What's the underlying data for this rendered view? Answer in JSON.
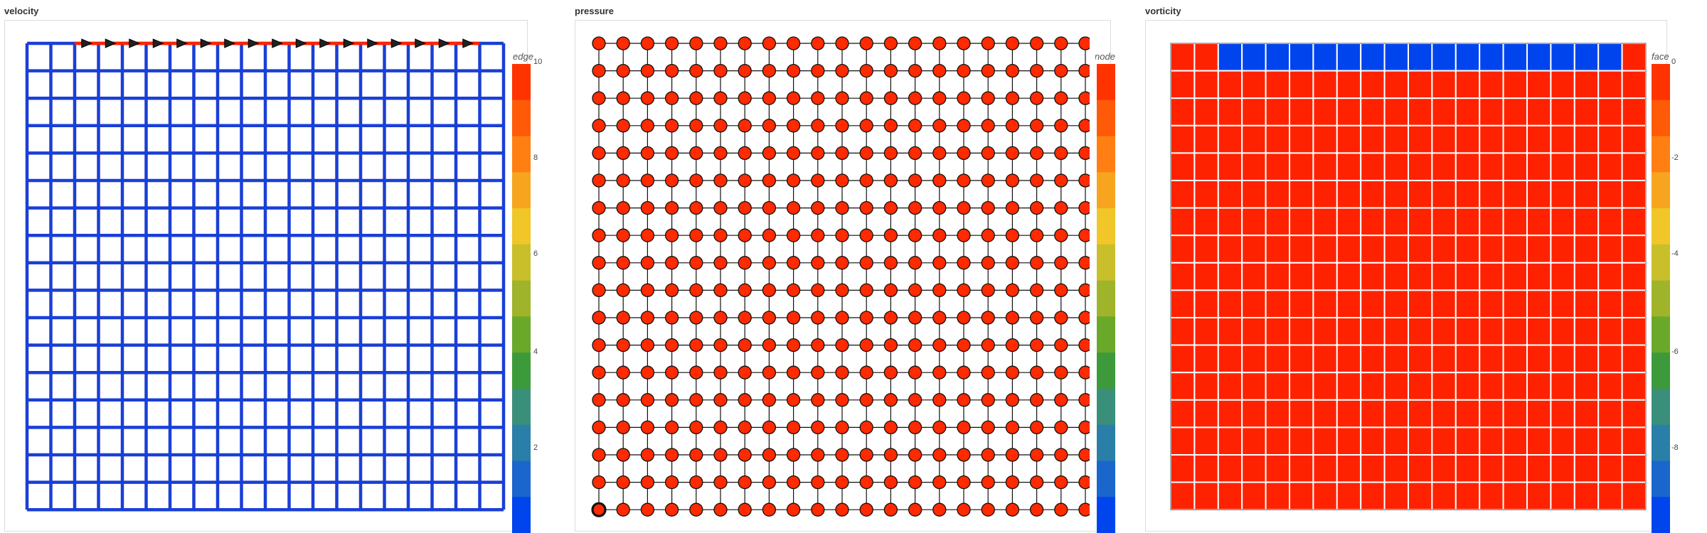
{
  "panels": [
    {
      "id": "velocity",
      "title": "velocity",
      "field_type": "edge",
      "legend_label": "edge",
      "colorbar_ticks": [
        "10",
        "8",
        "6",
        "4",
        "2"
      ],
      "colorbar_range": [
        0,
        10
      ],
      "grid_cells": [
        20,
        17
      ],
      "base_value": 0,
      "highlight": {
        "description": "top lid edges",
        "value": 10,
        "cells_from": 2,
        "cells_to": 19,
        "arrows": 17
      }
    },
    {
      "id": "pressure",
      "title": "pressure",
      "field_type": "node",
      "legend_label": "node",
      "colorbar_ticks": [],
      "grid_nodes": [
        21,
        18
      ],
      "selected_node": {
        "col": 0,
        "row": 17
      }
    },
    {
      "id": "vorticity",
      "title": "vorticity",
      "field_type": "face",
      "legend_label": "face",
      "colorbar_ticks": [
        "0",
        "-2",
        "-4",
        "-6",
        "-8"
      ],
      "colorbar_range": [
        -10,
        0
      ],
      "grid_cells": [
        20,
        17
      ],
      "base_value": 0,
      "top_row_value": -10,
      "top_row_cols_from": 2,
      "top_row_cols_to": 19
    }
  ],
  "colors": {
    "high": "#ff2200",
    "low": "#0044ee",
    "grid_blue": "#1a3fd6",
    "node_fill": "#ff2a00",
    "colormap": [
      "#0044ee",
      "#1a66cc",
      "#2a7fa8",
      "#3a8f7a",
      "#3d9a3a",
      "#6aa829",
      "#9fb42a",
      "#c9bf2a",
      "#f0c629",
      "#f7a51f",
      "#ff7f12",
      "#ff5a08",
      "#ff3300"
    ]
  }
}
